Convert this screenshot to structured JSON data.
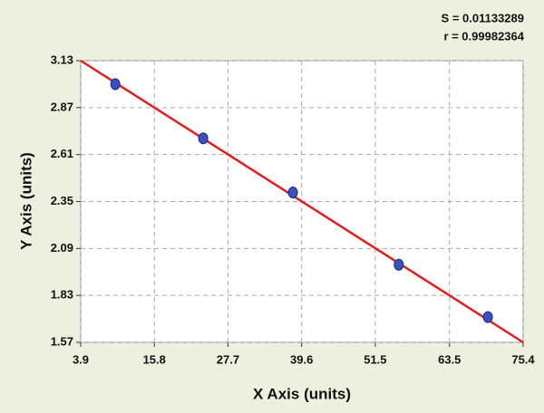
{
  "chart_data": {
    "type": "scatter",
    "stats": [
      "S = 0.01133289",
      "r = 0.99982364"
    ],
    "xlabel": "X Axis (units)",
    "ylabel": "Y Axis (units)",
    "x": [
      9.5,
      23.7,
      38.2,
      55.3,
      69.7
    ],
    "series": [
      {
        "color": "#3a4fc0",
        "values": [
          3.0,
          2.7,
          2.4,
          2.0,
          1.71
        ]
      }
    ],
    "fit": {
      "color": "#e0201c",
      "x": [
        3.9,
        75.4
      ],
      "y": [
        3.13,
        1.57
      ]
    },
    "xlim": [
      3.9,
      75.4
    ],
    "xticks": [
      3.9,
      15.8,
      27.7,
      39.6,
      51.5,
      63.5,
      75.4
    ],
    "ylim": [
      1.57,
      3.13
    ],
    "yticks": [
      1.57,
      1.83,
      2.09,
      2.35,
      2.61,
      2.87,
      3.13
    ],
    "grid": true
  }
}
